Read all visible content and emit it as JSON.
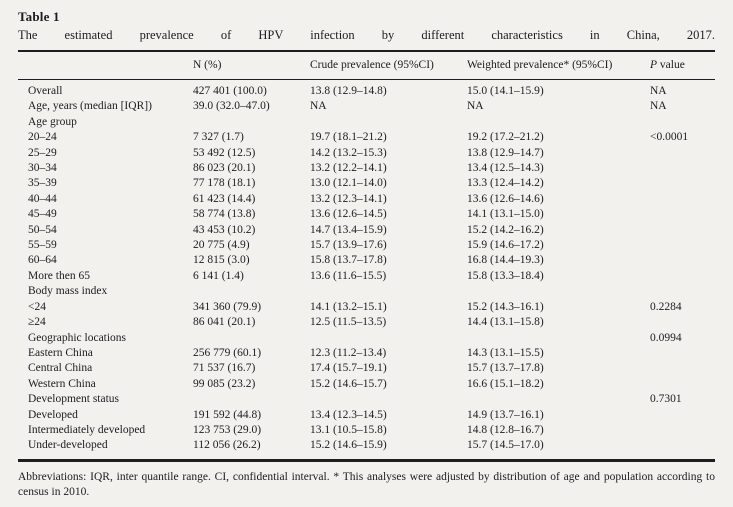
{
  "table": {
    "label": "Table 1",
    "caption": "The estimated prevalence of HPV infection by different characteristics in China, 2017.",
    "columns": [
      "",
      "N (%)",
      "Crude prevalence (95%CI)",
      "Weighted prevalence* (95%CI)",
      "P value"
    ],
    "rows": [
      {
        "label": "Overall",
        "n": "427 401 (100.0)",
        "crude": "13.8 (12.9–14.8)",
        "weighted": "15.0 (14.1–15.9)",
        "p": "NA"
      },
      {
        "label": "Age, years (median [IQR])",
        "n": "39.0 (32.0–47.0)",
        "crude": "NA",
        "weighted": "NA",
        "p": "NA"
      },
      {
        "label": "Age group",
        "n": "",
        "crude": "",
        "weighted": "",
        "p": ""
      },
      {
        "label": "20–24",
        "n": "7 327 (1.7)",
        "crude": "19.7 (18.1–21.2)",
        "weighted": "19.2 (17.2–21.2)",
        "p": "<0.0001"
      },
      {
        "label": "25–29",
        "n": "53 492 (12.5)",
        "crude": "14.2 (13.2–15.3)",
        "weighted": "13.8 (12.9–14.7)",
        "p": ""
      },
      {
        "label": "30–34",
        "n": "86 023 (20.1)",
        "crude": "13.2 (12.2–14.1)",
        "weighted": "13.4 (12.5–14.3)",
        "p": ""
      },
      {
        "label": "35–39",
        "n": "77 178 (18.1)",
        "crude": "13.0 (12.1–14.0)",
        "weighted": "13.3 (12.4–14.2)",
        "p": ""
      },
      {
        "label": "40–44",
        "n": "61 423 (14.4)",
        "crude": "13.2 (12.3–14.1)",
        "weighted": "13.6 (12.6–14.6)",
        "p": ""
      },
      {
        "label": "45–49",
        "n": "58 774 (13.8)",
        "crude": "13.6 (12.6–14.5)",
        "weighted": "14.1 (13.1–15.0)",
        "p": ""
      },
      {
        "label": "50–54",
        "n": "43 453 (10.2)",
        "crude": "14.7 (13.4–15.9)",
        "weighted": "15.2 (14.2–16.2)",
        "p": ""
      },
      {
        "label": "55–59",
        "n": "20 775 (4.9)",
        "crude": "15.7 (13.9–17.6)",
        "weighted": "15.9 (14.6–17.2)",
        "p": ""
      },
      {
        "label": "60–64",
        "n": "12 815 (3.0)",
        "crude": "15.8 (13.7–17.8)",
        "weighted": "16.8 (14.4–19.3)",
        "p": ""
      },
      {
        "label": "More then 65",
        "n": "6 141 (1.4)",
        "crude": "13.6 (11.6–15.5)",
        "weighted": "15.8 (13.3–18.4)",
        "p": ""
      },
      {
        "label": "Body mass index",
        "n": "",
        "crude": "",
        "weighted": "",
        "p": ""
      },
      {
        "label": "<24",
        "n": "341 360 (79.9)",
        "crude": "14.1 (13.2–15.1)",
        "weighted": "15.2 (14.3–16.1)",
        "p": "0.2284"
      },
      {
        "label": "≥24",
        "n": "86 041 (20.1)",
        "crude": "12.5 (11.5–13.5)",
        "weighted": "14.4 (13.1–15.8)",
        "p": ""
      },
      {
        "label": "Geographic locations",
        "n": "",
        "crude": "",
        "weighted": "",
        "p": "0.0994"
      },
      {
        "label": "Eastern China",
        "n": "256 779 (60.1)",
        "crude": "12.3 (11.2–13.4)",
        "weighted": "14.3 (13.1–15.5)",
        "p": ""
      },
      {
        "label": "Central China",
        "n": "71 537 (16.7)",
        "crude": "17.4 (15.7–19.1)",
        "weighted": "15.7 (13.7–17.8)",
        "p": ""
      },
      {
        "label": "Western China",
        "n": "99 085 (23.2)",
        "crude": "15.2 (14.6–15.7)",
        "weighted": "16.6 (15.1–18.2)",
        "p": ""
      },
      {
        "label": "Development status",
        "n": "",
        "crude": "",
        "weighted": "",
        "p": "0.7301"
      },
      {
        "label": "Developed",
        "n": "191 592 (44.8)",
        "crude": "13.4 (12.3–14.5)",
        "weighted": "14.9 (13.7–16.1)",
        "p": ""
      },
      {
        "label": "Intermediately developed",
        "n": "123 753 (29.0)",
        "crude": "13.1 (10.5–15.8)",
        "weighted": "14.8 (12.8–16.7)",
        "p": ""
      },
      {
        "label": "Under-developed",
        "n": "112 056 (26.2)",
        "crude": "15.2 (14.6–15.9)",
        "weighted": "15.7 (14.5–17.0)",
        "p": ""
      }
    ],
    "footnote": "Abbreviations: IQR, inter quantile range. CI, confidential interval. * This analyses were adjusted by distribution of age and population according to census in 2010."
  }
}
